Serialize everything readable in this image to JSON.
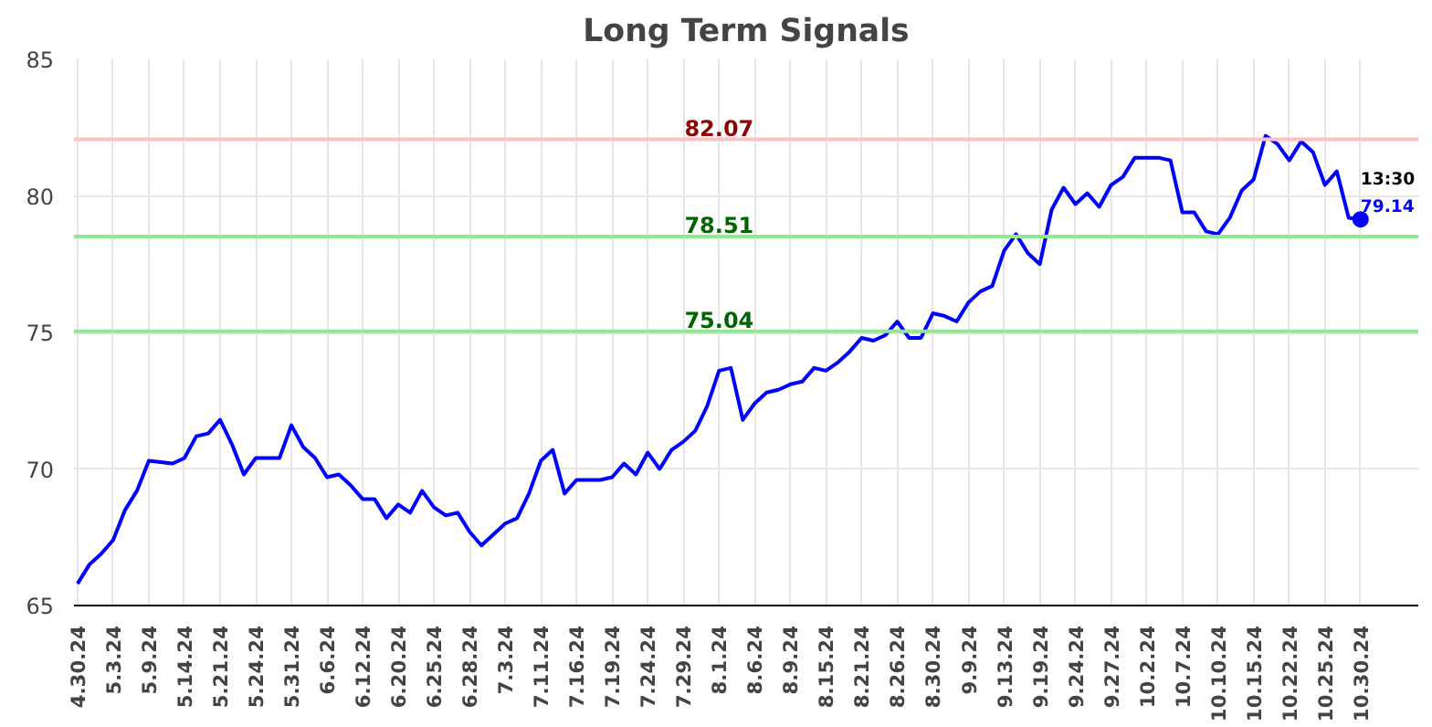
{
  "chart_data": {
    "type": "line",
    "title": "Long Term Signals",
    "categories": [
      "4.30.24",
      null,
      null,
      "5.3.24",
      null,
      null,
      "5.9.24",
      null,
      null,
      "5.14.24",
      null,
      null,
      "5.21.24",
      null,
      null,
      "5.24.24",
      null,
      null,
      "5.31.24",
      null,
      null,
      "6.6.24",
      null,
      null,
      "6.12.24",
      null,
      null,
      "6.20.24",
      null,
      null,
      "6.25.24",
      null,
      null,
      "6.28.24",
      null,
      null,
      "7.3.24",
      null,
      null,
      "7.11.24",
      null,
      null,
      "7.16.24",
      null,
      null,
      "7.19.24",
      null,
      null,
      "7.24.24",
      null,
      null,
      "7.29.24",
      null,
      null,
      "8.1.24",
      null,
      null,
      "8.6.24",
      null,
      null,
      "8.9.24",
      null,
      null,
      "8.15.24",
      null,
      null,
      "8.21.24",
      null,
      null,
      "8.26.24",
      null,
      null,
      "8.30.24",
      null,
      null,
      "9.9.24",
      null,
      null,
      "9.13.24",
      null,
      null,
      "9.19.24",
      null,
      null,
      "9.24.24",
      null,
      null,
      "9.27.24",
      null,
      null,
      "10.2.24",
      null,
      null,
      "10.7.24",
      null,
      null,
      "10.10.24",
      null,
      null,
      "10.15.24",
      null,
      null,
      "10.22.24",
      null,
      null,
      "10.25.24",
      null,
      null,
      "10.30.24"
    ],
    "series": [
      {
        "color": "#0000ff",
        "values": [
          65.8,
          66.5,
          66.9,
          67.4,
          68.5,
          69.2,
          70.3,
          70.25,
          70.2,
          70.4,
          71.2,
          71.3,
          71.8,
          70.9,
          69.8,
          70.4,
          70.4,
          70.4,
          71.6,
          70.8,
          70.4,
          69.7,
          69.8,
          69.4,
          68.9,
          68.9,
          68.2,
          68.7,
          68.4,
          69.2,
          68.6,
          68.3,
          68.4,
          67.7,
          67.2,
          67.6,
          68.0,
          68.2,
          69.1,
          70.3,
          70.7,
          69.1,
          69.6,
          69.6,
          69.6,
          69.7,
          70.2,
          69.8,
          70.6,
          70.0,
          70.7,
          71.0,
          71.4,
          72.3,
          73.6,
          73.7,
          71.8,
          72.4,
          72.8,
          72.9,
          73.1,
          73.2,
          73.7,
          73.6,
          73.9,
          74.3,
          74.8,
          74.7,
          74.9,
          75.4,
          74.8,
          74.8,
          75.7,
          75.6,
          75.4,
          76.1,
          76.5,
          76.7,
          78.0,
          78.6,
          77.9,
          77.5,
          79.5,
          80.3,
          79.7,
          80.1,
          79.6,
          80.4,
          80.7,
          81.4,
          81.4,
          81.4,
          81.3,
          79.4,
          79.4,
          78.7,
          78.6,
          79.2,
          80.2,
          80.6,
          82.2,
          81.9,
          81.3,
          82.0,
          81.6,
          80.4,
          80.9,
          79.2,
          79.14
        ]
      }
    ],
    "ylim": [
      65,
      85
    ],
    "yticks": [
      65,
      70,
      75,
      80,
      85
    ],
    "ref_lines": [
      {
        "axis": "y",
        "value": 82.07,
        "label": "82.07",
        "color": "#ffc0c0"
      },
      {
        "axis": "y",
        "value": 78.51,
        "label": "78.51",
        "color": "#90e890"
      },
      {
        "axis": "y",
        "value": 75.04,
        "label": "75.04",
        "color": "#90e890"
      }
    ],
    "annotations": [
      {
        "text": "13:30",
        "x": "10.30.24",
        "y": 79.14
      },
      {
        "text": "79.14",
        "x": "10.30.24",
        "y": 79.14
      }
    ],
    "grid": true,
    "marker": "none",
    "line_style": "solid"
  }
}
